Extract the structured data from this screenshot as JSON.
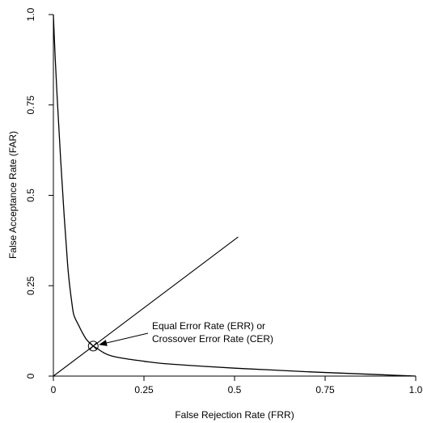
{
  "chart_data": {
    "type": "line",
    "title": "",
    "xlabel": "False Rejection Rate (FRR)",
    "ylabel": "False Acceptance Rate (FAR)",
    "xlim": [
      0,
      1.0
    ],
    "ylim": [
      0,
      1.0
    ],
    "x_ticks": [
      0,
      0.25,
      0.5,
      0.75,
      1.0
    ],
    "x_tick_labels": [
      "0",
      "0.25",
      "0.5",
      "0.75",
      "1.0"
    ],
    "y_ticks": [
      0,
      0.25,
      0.5,
      0.75,
      1.0
    ],
    "y_tick_labels": [
      "0",
      "0.25",
      "0.5",
      "0.75",
      "1.0"
    ],
    "grid": false,
    "series": [
      {
        "kind": "curve",
        "color": "#000000",
        "points": [
          [
            0.0,
            1.0
          ],
          [
            0.005,
            0.88
          ],
          [
            0.01,
            0.78
          ],
          [
            0.015,
            0.69
          ],
          [
            0.02,
            0.6
          ],
          [
            0.025,
            0.52
          ],
          [
            0.03,
            0.44
          ],
          [
            0.035,
            0.37
          ],
          [
            0.04,
            0.3
          ],
          [
            0.045,
            0.25
          ],
          [
            0.05,
            0.21
          ],
          [
            0.055,
            0.175
          ],
          [
            0.06,
            0.16
          ],
          [
            0.07,
            0.14
          ],
          [
            0.08,
            0.12
          ],
          [
            0.09,
            0.103
          ],
          [
            0.1,
            0.092
          ],
          [
            0.11,
            0.083
          ],
          [
            0.12,
            0.077
          ],
          [
            0.14,
            0.064
          ],
          [
            0.16,
            0.056
          ],
          [
            0.2,
            0.048
          ],
          [
            0.25,
            0.041
          ],
          [
            0.3,
            0.035
          ],
          [
            0.4,
            0.028
          ],
          [
            0.5,
            0.022
          ],
          [
            0.6,
            0.017
          ],
          [
            0.7,
            0.012
          ],
          [
            0.8,
            0.008
          ],
          [
            0.9,
            0.004
          ],
          [
            1.0,
            0.0
          ]
        ]
      },
      {
        "kind": "reference-line",
        "color": "#000000",
        "points": [
          [
            0.0,
            0.0
          ],
          [
            0.51,
            0.385
          ]
        ]
      }
    ],
    "marker": {
      "x": 0.11,
      "y": 0.083,
      "shape": "circle-cross"
    },
    "annotation": {
      "lines": [
        "Equal Error Rate (ERR) or",
        "Crossover Error Rate (CER)"
      ],
      "points_to": [
        0.11,
        0.083
      ]
    }
  }
}
